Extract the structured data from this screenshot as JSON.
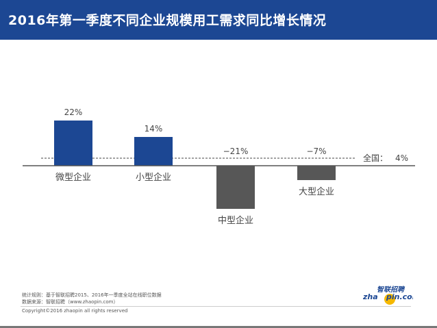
{
  "header": {
    "title": "2016年第一季度不同企业规模用工需求同比增长情况"
  },
  "chart_data": {
    "type": "bar",
    "title": "2016年第一季度不同企业规模用工需求同比增长情况",
    "categories": [
      "微型企业",
      "小型企业",
      "中型企业",
      "大型企业"
    ],
    "values": [
      22,
      14,
      -21,
      -7
    ],
    "value_labels": [
      "22%",
      "14%",
      "−21%",
      "−7%"
    ],
    "colors": [
      "#1c4793",
      "#1c4793",
      "#575757",
      "#575757"
    ],
    "reference_line": {
      "label": "全国：",
      "value": 4,
      "value_label": "4%",
      "style": "dashed"
    },
    "grid": false,
    "ylim": [
      -25,
      25
    ]
  },
  "footer": {
    "rule": "统计规则：基于智联招聘2015、2016年一季度全站在线职位数据",
    "source": "数据来源：智联招聘（www.zhaopin.com）",
    "copyright": "Copyright©2016 zhaopin all rights reserved",
    "logo_text": "智联招聘 zhaopin.com"
  }
}
